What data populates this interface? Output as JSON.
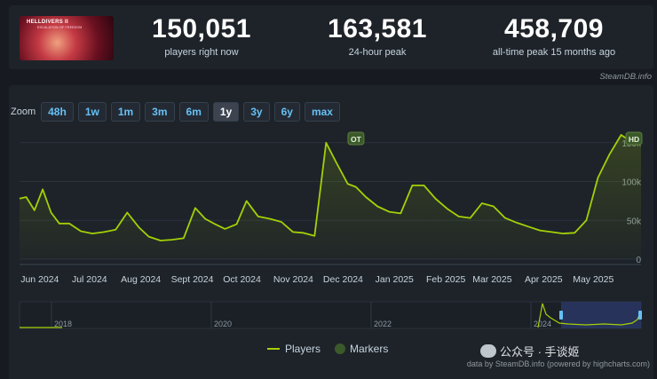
{
  "stats": {
    "players_now": {
      "value": "150,051",
      "label": "players right now"
    },
    "peak_24h": {
      "value": "163,581",
      "label": "24-hour peak"
    },
    "alltime": {
      "value": "458,709",
      "label": "all-time peak 15 months ago"
    },
    "thumbnail_title": "HELLDIVERS II",
    "thumbnail_subtitle": "ESCALATION OF FREEDOM"
  },
  "credit": "SteamDB.info",
  "zoom": {
    "label": "Zoom",
    "options": [
      "48h",
      "1w",
      "1m",
      "3m",
      "6m",
      "1y",
      "3y",
      "6y",
      "max"
    ],
    "active": "1y"
  },
  "chart_data": {
    "type": "line",
    "x_ticks": [
      "Jun 2024",
      "Jul 2024",
      "Aug 2024",
      "Sept 2024",
      "Oct 2024",
      "Nov 2024",
      "Dec 2024",
      "Jan 2025",
      "Feb 2025",
      "Mar 2025",
      "Apr 2025",
      "May 2025"
    ],
    "y_ticks": [
      "0",
      "50k",
      "100k",
      "150k"
    ],
    "ylim": [
      0,
      160000
    ],
    "series": [
      {
        "name": "Players",
        "color": "#a4d007",
        "x": [
          "2024-05-23",
          "2024-05-27",
          "2024-06-01",
          "2024-06-06",
          "2024-06-11",
          "2024-06-16",
          "2024-06-22",
          "2024-06-29",
          "2024-07-06",
          "2024-07-13",
          "2024-07-20",
          "2024-07-27",
          "2024-08-03",
          "2024-08-09",
          "2024-08-16",
          "2024-08-23",
          "2024-08-30",
          "2024-09-06",
          "2024-09-12",
          "2024-09-18",
          "2024-09-24",
          "2024-10-01",
          "2024-10-07",
          "2024-10-14",
          "2024-10-21",
          "2024-10-28",
          "2024-11-04",
          "2024-11-10",
          "2024-11-17",
          "2024-11-24",
          "2024-11-30",
          "2024-12-07",
          "2024-12-12",
          "2024-12-18",
          "2024-12-25",
          "2025-01-01",
          "2025-01-08",
          "2025-01-15",
          "2025-01-22",
          "2025-01-29",
          "2025-02-05",
          "2025-02-12",
          "2025-02-19",
          "2025-02-26",
          "2025-03-05",
          "2025-03-12",
          "2025-03-19",
          "2025-03-26",
          "2025-04-02",
          "2025-04-09",
          "2025-04-16",
          "2025-04-23",
          "2025-04-30",
          "2025-05-07",
          "2025-05-14",
          "2025-05-21",
          "2025-05-28",
          "2025-06-02"
        ],
        "y": [
          78000,
          80000,
          63000,
          90000,
          60000,
          46000,
          46000,
          36000,
          33000,
          35000,
          38000,
          60000,
          41000,
          29000,
          24000,
          25000,
          27000,
          66000,
          52000,
          45000,
          39000,
          45000,
          75000,
          55000,
          52000,
          48000,
          35000,
          34000,
          30000,
          150000,
          125000,
          97000,
          93000,
          80000,
          68000,
          61000,
          59000,
          95000,
          95000,
          78000,
          65000,
          55000,
          53000,
          72000,
          68000,
          53000,
          47000,
          42000,
          37000,
          35000,
          33000,
          34000,
          50000,
          105000,
          135000,
          160000,
          150000,
          150000
        ]
      }
    ],
    "markers": [
      {
        "label": "OT",
        "x": "2024-12-12",
        "y": 150000
      },
      {
        "label": "HD",
        "x": "2025-06-02",
        "y": 160000
      }
    ],
    "navigator_ticks": [
      "2018",
      "2020",
      "2022",
      "2024"
    ],
    "legend": [
      {
        "name": "Players",
        "color": "#a4d007"
      },
      {
        "name": "Markers",
        "color": "#3b5a2a"
      }
    ]
  },
  "footer": "data by SteamDB.info (powered by highcharts.com)",
  "watermark": "公众号 · 手谈姬"
}
